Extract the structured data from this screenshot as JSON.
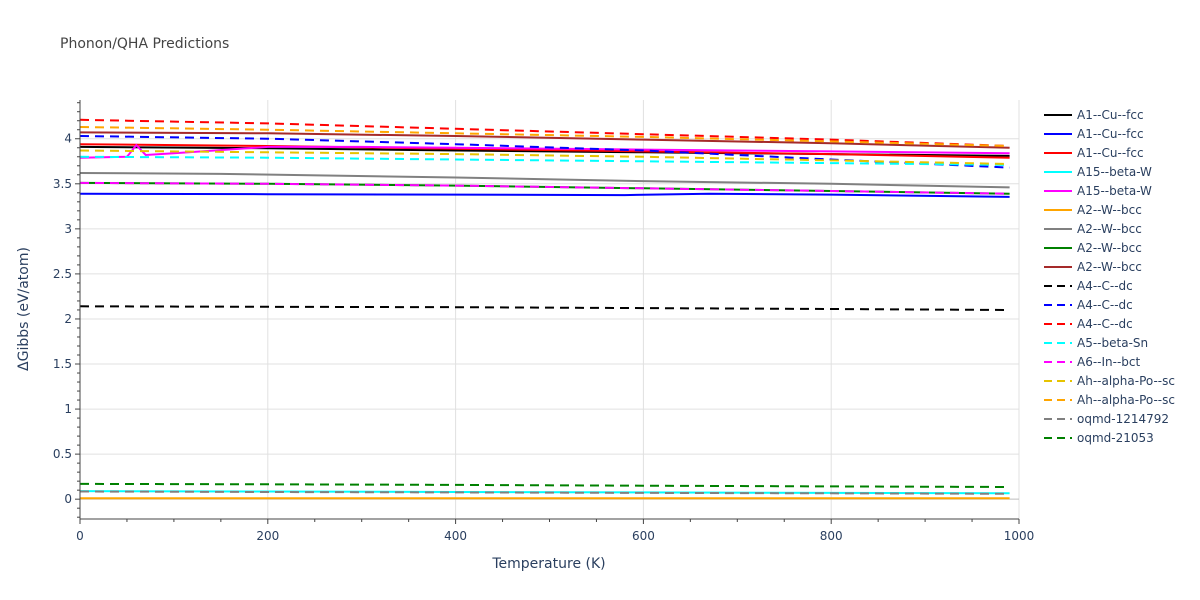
{
  "chart_data": {
    "type": "line",
    "title": "Phonon/QHA Predictions",
    "xlabel": "Temperature (K)",
    "ylabel": "ΔGibbs (eV/atom)",
    "xlim": [
      0,
      1000
    ],
    "ylim": [
      -0.22,
      4.43
    ],
    "xticks": [
      0,
      200,
      400,
      600,
      800,
      1000
    ],
    "yticks": [
      0,
      0.5,
      1,
      1.5,
      2,
      2.5,
      3,
      3.5,
      4
    ],
    "grid": true,
    "legend_position": "right",
    "series": [
      {
        "name": "A1--Cu--fcc",
        "color": "#000000",
        "dash": "solid",
        "x": [
          0,
          200,
          400,
          600,
          800,
          990
        ],
        "y": [
          3.91,
          3.895,
          3.87,
          3.85,
          3.83,
          3.81
        ]
      },
      {
        "name": "A1--Cu--fcc",
        "color": "#0000ff",
        "dash": "solid",
        "x": [
          0,
          200,
          400,
          580,
          670,
          800,
          990
        ],
        "y": [
          3.39,
          3.385,
          3.38,
          3.375,
          3.39,
          3.38,
          3.355
        ]
      },
      {
        "name": "A1--Cu--fcc",
        "color": "#ff0000",
        "dash": "solid",
        "x": [
          0,
          200,
          400,
          600,
          800,
          990
        ],
        "y": [
          3.94,
          3.92,
          3.89,
          3.86,
          3.83,
          3.79
        ]
      },
      {
        "name": "A15--beta-W",
        "color": "#00ffff",
        "dash": "solid",
        "x": [
          0,
          200,
          400,
          600,
          800,
          990
        ],
        "y": [
          0.09,
          0.085,
          0.08,
          0.075,
          0.07,
          0.065
        ]
      },
      {
        "name": "A15--beta-W",
        "color": "#ff00ff",
        "dash": "solid",
        "x": [
          0,
          50,
          60,
          70,
          100,
          200,
          300,
          400,
          600,
          800,
          990
        ],
        "y": [
          3.79,
          3.8,
          3.93,
          3.82,
          3.84,
          3.91,
          3.91,
          3.9,
          3.88,
          3.86,
          3.84
        ]
      },
      {
        "name": "A2--W--bcc",
        "color": "#ffa500",
        "dash": "solid",
        "x": [
          0,
          200,
          400,
          600,
          800,
          990
        ],
        "y": [
          0.01,
          0.01,
          0.01,
          0.01,
          0.01,
          0.01
        ]
      },
      {
        "name": "A2--W--bcc",
        "color": "#808080",
        "dash": "solid",
        "x": [
          0,
          150,
          400,
          600,
          800,
          990
        ],
        "y": [
          3.62,
          3.61,
          3.57,
          3.53,
          3.5,
          3.46
        ]
      },
      {
        "name": "A2--W--bcc",
        "color": "#008000",
        "dash": "solid",
        "x": [
          0,
          200,
          400,
          600,
          800,
          990
        ],
        "y": [
          3.51,
          3.5,
          3.48,
          3.45,
          3.42,
          3.39
        ]
      },
      {
        "name": "A2--W--bcc",
        "color": "#a52a2a",
        "dash": "solid",
        "x": [
          0,
          200,
          400,
          600,
          800,
          990
        ],
        "y": [
          4.07,
          4.06,
          4.03,
          3.99,
          3.95,
          3.9
        ]
      },
      {
        "name": "A4--C--dc",
        "color": "#000000",
        "dash": "dash",
        "x": [
          0,
          200,
          400,
          600,
          800,
          990
        ],
        "y": [
          2.14,
          2.135,
          2.13,
          2.12,
          2.11,
          2.1
        ]
      },
      {
        "name": "A4--C--dc",
        "color": "#0000ff",
        "dash": "dash",
        "x": [
          0,
          200,
          400,
          600,
          800,
          990
        ],
        "y": [
          4.03,
          4.0,
          3.94,
          3.87,
          3.77,
          3.68
        ]
      },
      {
        "name": "A4--C--dc",
        "color": "#ff0000",
        "dash": "dash",
        "x": [
          0,
          200,
          400,
          600,
          800,
          990
        ],
        "y": [
          4.21,
          4.17,
          4.11,
          4.05,
          3.99,
          3.92
        ]
      },
      {
        "name": "A5--beta-Sn",
        "color": "#00ffff",
        "dash": "dash",
        "x": [
          0,
          200,
          400,
          600,
          800,
          990
        ],
        "y": [
          3.8,
          3.79,
          3.77,
          3.75,
          3.73,
          3.71
        ]
      },
      {
        "name": "A6--In--bct",
        "color": "#ff00ff",
        "dash": "dash",
        "x": [
          0,
          200,
          400,
          600,
          800,
          990
        ],
        "y": [
          3.51,
          3.5,
          3.48,
          3.45,
          3.42,
          3.39
        ]
      },
      {
        "name": "Ah--alpha-Po--sc",
        "color": "#e6c300",
        "dash": "dash",
        "x": [
          0,
          200,
          400,
          600,
          800,
          990
        ],
        "y": [
          3.87,
          3.85,
          3.83,
          3.8,
          3.76,
          3.72
        ]
      },
      {
        "name": "Ah--alpha-Po--sc",
        "color": "#ffa500",
        "dash": "dash",
        "x": [
          0,
          200,
          400,
          600,
          800,
          990
        ],
        "y": [
          4.13,
          4.1,
          4.06,
          4.02,
          3.97,
          3.92
        ]
      },
      {
        "name": "oqmd-1214792",
        "color": "#808080",
        "dash": "dash",
        "x": [
          0,
          200,
          400,
          600,
          800,
          990
        ],
        "y": [
          0.085,
          0.08,
          0.075,
          0.07,
          0.065,
          0.06
        ]
      },
      {
        "name": "oqmd-21053",
        "color": "#008000",
        "dash": "dash",
        "x": [
          0,
          200,
          400,
          600,
          800,
          990
        ],
        "y": [
          0.17,
          0.165,
          0.158,
          0.15,
          0.142,
          0.135
        ]
      }
    ]
  }
}
